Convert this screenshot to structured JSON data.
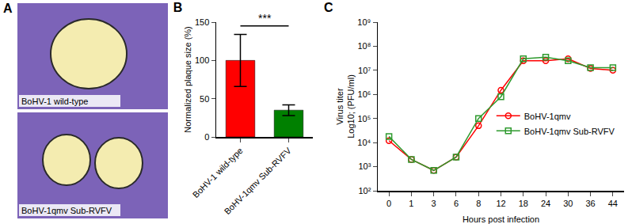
{
  "chart_data": [
    {
      "type": "image",
      "title": "A",
      "labels": [
        "BoHV-1 wild-type",
        "BoHV-1qmv Sub-RVFV"
      ]
    },
    {
      "type": "bar",
      "title": "B",
      "categories": [
        "BoHV-1 wild-type",
        "BoHV-1qmv Sub-RVFV"
      ],
      "values": [
        100,
        35
      ],
      "errors": [
        34,
        7
      ],
      "colors": [
        "#ff0000",
        "#008000"
      ],
      "ylabel": "Normalized plaque size (%)",
      "ylim": [
        0,
        150
      ],
      "yticks": [
        0,
        50,
        100,
        150
      ],
      "annotations": [
        {
          "text": "***",
          "y": 145
        }
      ],
      "grid": false
    },
    {
      "type": "line",
      "title": "C",
      "categories": [
        "0",
        "1",
        "3",
        "6",
        "8",
        "12",
        "18",
        "24",
        "30",
        "36",
        "44"
      ],
      "xlabel": "Hours post infection",
      "ylabel": "Virus titer\nLog10; (PFU/ml)",
      "log": "y",
      "ylim": [
        100,
        1000000000
      ],
      "yticks": [
        {
          "value": 100,
          "label": "10²"
        },
        {
          "value": 1000,
          "label": "10³"
        },
        {
          "value": 10000,
          "label": "10⁴"
        },
        {
          "value": 100000,
          "label": "10⁵"
        },
        {
          "value": 1000000,
          "label": "10⁶"
        },
        {
          "value": 10000000,
          "label": "10⁷"
        },
        {
          "value": 100000000,
          "label": "10⁸"
        },
        {
          "value": 1000000000,
          "label": "10⁹"
        }
      ],
      "series": [
        {
          "name": "BoHV-1qmv",
          "color": "#ff0000",
          "marker": "circle",
          "values": [
            12000,
            2000,
            700,
            2500,
            50000,
            1500000,
            25000000,
            25000000,
            30000000,
            12000000,
            10000000
          ]
        },
        {
          "name": "BoHV-1qmv Sub-RVFV",
          "color": "#2e9a2e",
          "marker": "square",
          "values": [
            18000,
            2000,
            700,
            2500,
            100000,
            800000,
            30000000,
            35000000,
            25000000,
            13000000,
            13000000
          ]
        }
      ],
      "legend": "right",
      "grid": false
    }
  ]
}
